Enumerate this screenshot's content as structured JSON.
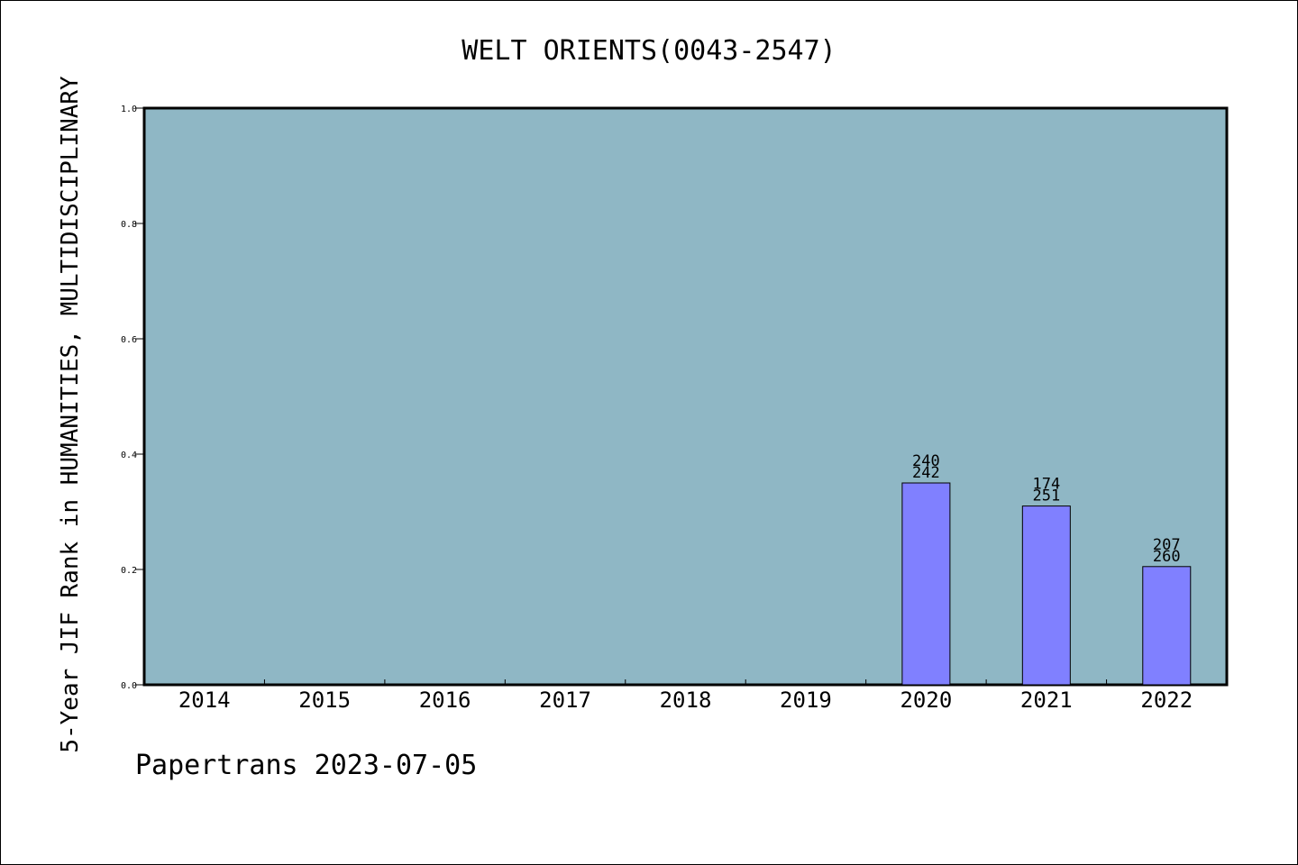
{
  "footer_text": "Papertrans 2023-07-05",
  "colors": {
    "plot_background": "#8fb7c5",
    "bar_fill": "#8080ff",
    "axis": "#000000"
  },
  "chart_data": {
    "type": "bar",
    "title": "WELT ORIENTS(0043-2547)",
    "xlabel": "",
    "ylabel": "5-Year JIF Rank in HUMANITIES, MULTIDISCIPLINARY",
    "ylim": [
      0.0,
      1.0
    ],
    "yticks": [
      "0.0",
      "0.2",
      "0.4",
      "0.6",
      "0.8",
      "1.0"
    ],
    "grid": false,
    "categories": [
      "2014",
      "2015",
      "2016",
      "2017",
      "2018",
      "2019",
      "2020",
      "2021",
      "2022"
    ],
    "values": [
      null,
      null,
      null,
      null,
      null,
      null,
      0.35,
      0.31,
      0.205
    ],
    "rank_labels": [
      null,
      null,
      null,
      null,
      null,
      null,
      "240",
      "174",
      "207"
    ],
    "total_labels": [
      null,
      null,
      null,
      null,
      null,
      null,
      "242",
      "251",
      "260"
    ]
  }
}
